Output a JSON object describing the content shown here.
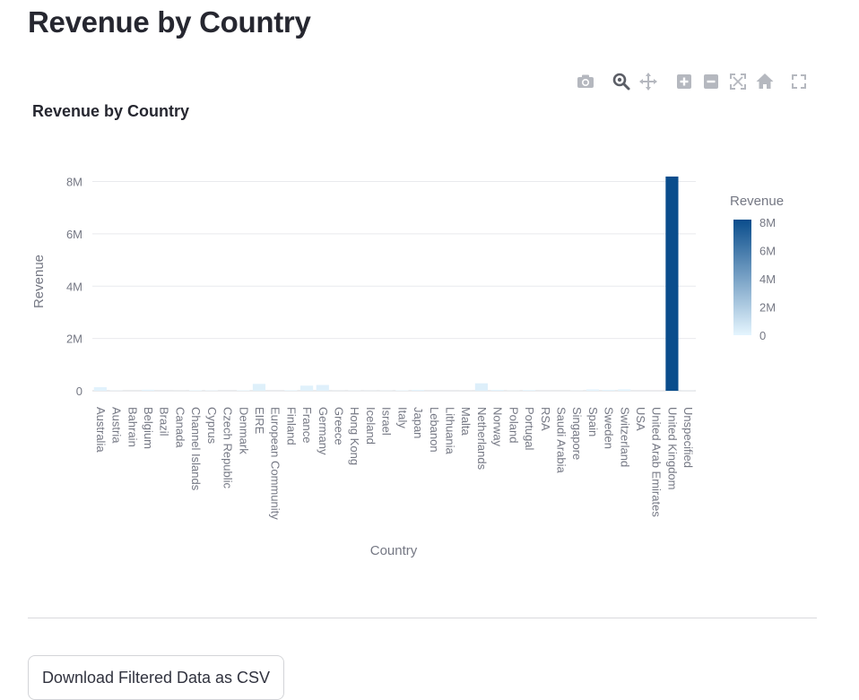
{
  "page": {
    "title": "Revenue by Country"
  },
  "modebar": {
    "buttons": [
      "camera-icon",
      "zoom-icon",
      "pan-icon",
      "zoom-in-icon",
      "zoom-out-icon",
      "autoscale-icon",
      "home-icon",
      "fullscreen-icon"
    ]
  },
  "download": {
    "label": "Download Filtered Data as CSV"
  },
  "chart_data": {
    "type": "bar",
    "title": "Revenue by Country",
    "xlabel": "Country",
    "ylabel": "Revenue",
    "ylim": [
      0,
      8600000
    ],
    "yticks": [
      0,
      2000000,
      4000000,
      6000000,
      8000000
    ],
    "ytick_labels": [
      "0",
      "2M",
      "4M",
      "6M",
      "8M"
    ],
    "grid": true,
    "categories": [
      "Australia",
      "Austria",
      "Bahrain",
      "Belgium",
      "Brazil",
      "Canada",
      "Channel Islands",
      "Cyprus",
      "Czech Republic",
      "Denmark",
      "EIRE",
      "European Community",
      "Finland",
      "France",
      "Germany",
      "Greece",
      "Hong Kong",
      "Iceland",
      "Israel",
      "Italy",
      "Japan",
      "Lebanon",
      "Lithuania",
      "Malta",
      "Netherlands",
      "Norway",
      "Poland",
      "Portugal",
      "RSA",
      "Saudi Arabia",
      "Singapore",
      "Spain",
      "Sweden",
      "Switzerland",
      "USA",
      "United Arab Emirates",
      "United Kingdom",
      "Unspecified"
    ],
    "values": [
      137000,
      10000,
      500,
      41000,
      1100,
      3600,
      20000,
      12900,
      700,
      18800,
      263000,
      1300,
      22300,
      197000,
      222000,
      4700,
      10100,
      4300,
      7900,
      16900,
      35300,
      1700,
      1700,
      2500,
      285000,
      35200,
      7200,
      29400,
      1000,
      100,
      9100,
      54800,
      36600,
      56400,
      1700,
      1900,
      8190000,
      4700
    ],
    "colorbar": {
      "title": "Revenue",
      "tick_labels": [
        "8M",
        "6M",
        "4M",
        "2M",
        "0"
      ],
      "tick_values": [
        8000000,
        6000000,
        4000000,
        2000000,
        0
      ],
      "range": [
        0,
        8190000
      ],
      "colors": [
        "#e5f5fe",
        "#0a4d8c"
      ]
    }
  }
}
